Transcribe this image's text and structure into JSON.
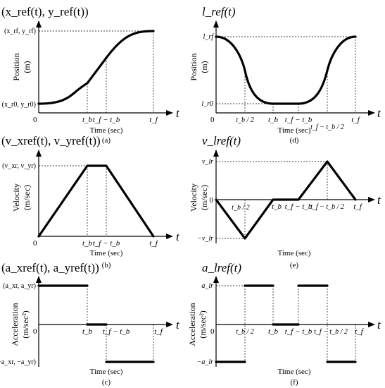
{
  "axis_symbol_t": "t",
  "origin_zero": "0",
  "x_axis_label": "Time (sec)",
  "panels": {
    "a": {
      "title": "(x_ref(t), y_ref(t))",
      "y_axis": [
        "Position",
        "(m)"
      ],
      "y_ticks": [
        "(x_rf, y_rf)",
        "(x_r0, y_r0)"
      ],
      "x_ticks": [
        "t_b",
        "t_f − t_b",
        "t_f"
      ],
      "caption": "(a)"
    },
    "b": {
      "title": "(v_xref(t), v_yref(t))",
      "y_axis": [
        "Velocity",
        "(m/sec)"
      ],
      "y_ticks": [
        "(v_xr, v_yr)"
      ],
      "x_ticks": [
        "t_b",
        "t_f − t_b",
        "t_f"
      ],
      "caption": "(b)"
    },
    "c": {
      "title": "(a_xref(t), a_yref(t))",
      "y_axis": [
        "Acceleration",
        "(m/sec²)"
      ],
      "y_ticks": [
        "(a_xr, a_yr)",
        "(−a_xr, −a_yr)"
      ],
      "x_ticks": [
        "t_b",
        "t_f − t_b",
        "t_f"
      ],
      "caption": "(c)"
    },
    "d": {
      "title": "l_ref(t)",
      "y_axis": [
        "Position",
        "(m)"
      ],
      "y_ticks": [
        "l_rf",
        "l_r0"
      ],
      "x_ticks": [
        "t_b / 2",
        "t_b",
        "t_f − t_b",
        "t_f − t_b / 2",
        "t_f"
      ],
      "caption": "(d)"
    },
    "e": {
      "title": "v_lref(t)",
      "y_axis": [
        "Velocity",
        "(m/sec)"
      ],
      "y_ticks": [
        "v_lr",
        "0",
        "−v_lr"
      ],
      "x_ticks": [
        "t_b / 2",
        "t_b",
        "t_f − t_b",
        "t_f − t_b / 2",
        "t_f"
      ],
      "caption": "(e)"
    },
    "f": {
      "title": "a_lref(t)",
      "y_axis": [
        "Acceleration",
        "(m/sec²)"
      ],
      "y_ticks": [
        "a_lr",
        "−a_lr"
      ],
      "x_ticks": [
        "t_b / 2",
        "t_b",
        "t_f − t_b",
        "t_f − t_b / 2",
        "t_f"
      ],
      "caption": "(f)"
    }
  }
}
